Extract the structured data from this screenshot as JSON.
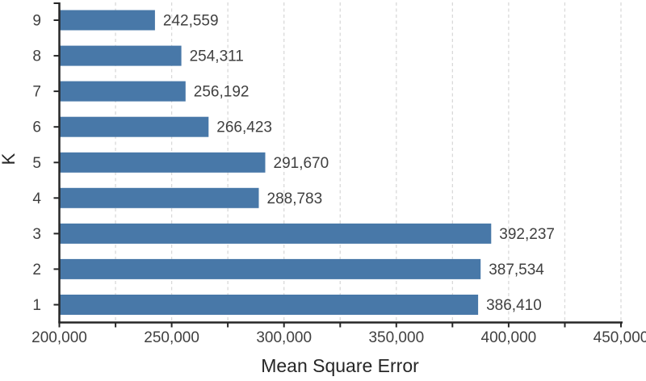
{
  "chart_data": {
    "type": "bar",
    "orientation": "horizontal",
    "title": "",
    "xlabel": "Mean Square Error",
    "ylabel": "K",
    "categories": [
      "9",
      "8",
      "7",
      "6",
      "5",
      "4",
      "3",
      "2",
      "1"
    ],
    "values": [
      242559,
      254311,
      256192,
      266423,
      291670,
      288783,
      392237,
      387534,
      386410
    ],
    "value_labels": [
      "242,559",
      "254,311",
      "256,192",
      "266,423",
      "291,670",
      "288,783",
      "392,237",
      "387,534",
      "386,410"
    ],
    "xlim": [
      200000,
      450000
    ],
    "xtick_interval_labeled": 50000,
    "xtick_interval_minor": 25000,
    "xtick_labels": [
      "200,000",
      "250,000",
      "300,000",
      "350,000",
      "400,000",
      "450,000"
    ],
    "grid": "vertical-dashed-every-25000",
    "legend": "none",
    "colors": {
      "bar": "#4878A8",
      "gridline": "#D9D9D9",
      "axis": "#262626",
      "text": "#404040",
      "title": "#262626"
    }
  }
}
